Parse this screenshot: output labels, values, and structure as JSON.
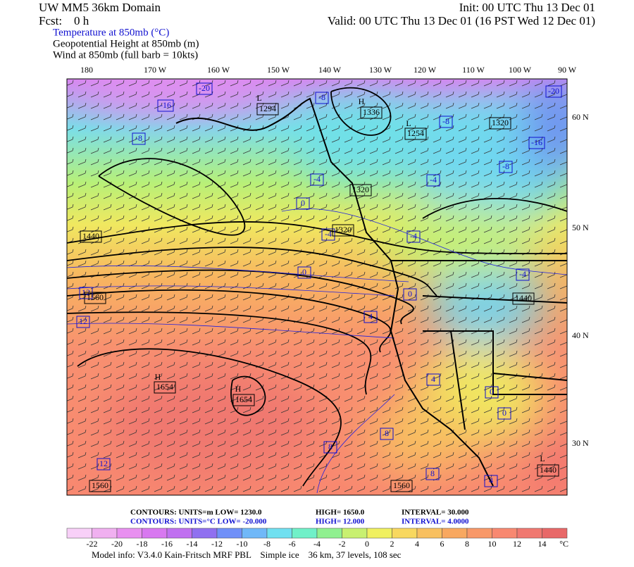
{
  "header": {
    "domain": "UW MM5 36km Domain",
    "init": "Init: 00 UTC Thu 13 Dec 01",
    "fcst": "Fcst:    0 h",
    "valid": "Valid: 00 UTC Thu 13 Dec 01 (16 PST Wed 12 Dec 01)",
    "fields": [
      "Temperature at 850mb (°C)",
      "Geopotential Height at 850mb (m)",
      "Wind at 850mb (full barb = 10kts)"
    ]
  },
  "map": {
    "longitudes": [
      "180",
      "170 W",
      "160 W",
      "150 W",
      "140 W",
      "130 W",
      "120 W",
      "110 W",
      "100 W",
      "90 W"
    ],
    "latitudes": [
      "60 N",
      "50 N",
      "40 N",
      "30 N"
    ],
    "temperature_labels": [
      "-20",
      "-16",
      "-8",
      "-8",
      "-8",
      "-16",
      "-8",
      "-4",
      "-4",
      "0",
      "-4",
      "-4",
      "-4",
      "0",
      "0",
      "4",
      "12",
      "12",
      "4",
      "0",
      "0",
      "8",
      "8",
      "8",
      "4",
      "12",
      "-20"
    ],
    "height_labels": [
      "1294",
      "1336",
      "1254",
      "1320",
      "1320",
      "1320",
      "1440",
      "1560",
      "1440",
      "1654",
      "1654",
      "1560",
      "1560",
      "1440"
    ],
    "centers": [
      "L",
      "H",
      "L",
      "H",
      "H",
      "L"
    ]
  },
  "footer": {
    "height_contours": [
      "CONTOURS:  UNITS=m  LOW=  1230.0",
      "HIGH=  1650.0",
      "INTERVAL=  30.000"
    ],
    "temperature_contours": [
      "CONTOURS:  UNITS=°C  LOW=  -20.000",
      "HIGH=  12.000",
      "INTERVAL=  4.0000"
    ]
  },
  "colorbar": {
    "colors": [
      "#f8d0f8",
      "#f0b0f0",
      "#e890f0",
      "#d878f0",
      "#c070f0",
      "#9070f0",
      "#7090f8",
      "#70b8f8",
      "#70e0f0",
      "#70f0c8",
      "#90f090",
      "#c8f070",
      "#f0f060",
      "#f8d860",
      "#f8c060",
      "#f8a860",
      "#f89868",
      "#f88870",
      "#f07870",
      "#e86868"
    ],
    "ticks": [
      -22,
      -20,
      -18,
      -16,
      -14,
      -12,
      -10,
      -8,
      -6,
      -4,
      -2,
      0,
      2,
      4,
      6,
      8,
      10,
      12,
      14
    ],
    "unit": "°C"
  },
  "model_info": "Model info: V3.4.0 Kain-Fritsch MRF PBL    Simple ice    36 km, 37 levels, 108 sec"
}
